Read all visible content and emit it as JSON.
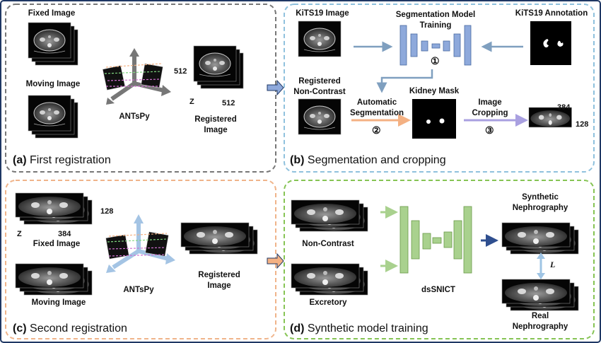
{
  "panels": {
    "a": {
      "tag": "(a)",
      "title": "First registration"
    },
    "b": {
      "tag": "(b)",
      "title": "Segmentation and cropping"
    },
    "c": {
      "tag": "(c)",
      "title": "Second registration"
    },
    "d": {
      "tag": "(d)",
      "title": "Synthetic model training"
    }
  },
  "a": {
    "fixed_image": "Fixed Image",
    "moving_image": "Moving Image",
    "antspy": "ANTsPy",
    "registered_line1": "Registered",
    "registered_line2": "Image",
    "dim_512_a": "512",
    "dim_512_b": "512",
    "dim_z": "Z"
  },
  "b": {
    "kits_image": "KiTS19 Image",
    "seg_model_line1": "Segmentation Model",
    "seg_model_line2": "Training",
    "kits_annotation": "KiTS19 Annotation",
    "registered_nc_line1": "Registered",
    "registered_nc_line2": "Non-Contrast",
    "auto_seg_line1": "Automatic",
    "auto_seg_line2": "Segmentation",
    "kidney_mask": "Kidney Mask",
    "image_crop_line1": "Image",
    "image_crop_line2": "Cropping",
    "step1": "①",
    "step2": "②",
    "step3": "③",
    "dim_384": "384",
    "dim_128": "128"
  },
  "c": {
    "dim_128": "128",
    "dim_384": "384",
    "dim_z": "Z",
    "fixed_image": "Fixed Image",
    "moving_image": "Moving Image",
    "antspy": "ANTsPy",
    "registered_line1": "Registered",
    "registered_line2": "Image"
  },
  "d": {
    "non_contrast": "Non-Contrast",
    "excretory": "Excretory",
    "model": "dsSNICT",
    "synthetic_line1": "Synthetic",
    "synthetic_line2": "Nephrography",
    "real_line1": "Real",
    "real_line2": "Nephrography",
    "loss": "L"
  },
  "colors": {
    "panel_a_border": "#777777",
    "panel_b_border": "#8fc1dd",
    "panel_c_border": "#f0b48a",
    "panel_d_border": "#86c454",
    "outer_border": "#1f3864",
    "seg_net": "#8ea9db",
    "dssnict_net": "#a9d18e",
    "arrow_orange": "#f4b183",
    "arrow_purple": "#a9a0e0",
    "arrow_blue": "#7f9fbf",
    "arrow_green": "#a9d18e",
    "arrow_navy": "#2f4f8f"
  }
}
